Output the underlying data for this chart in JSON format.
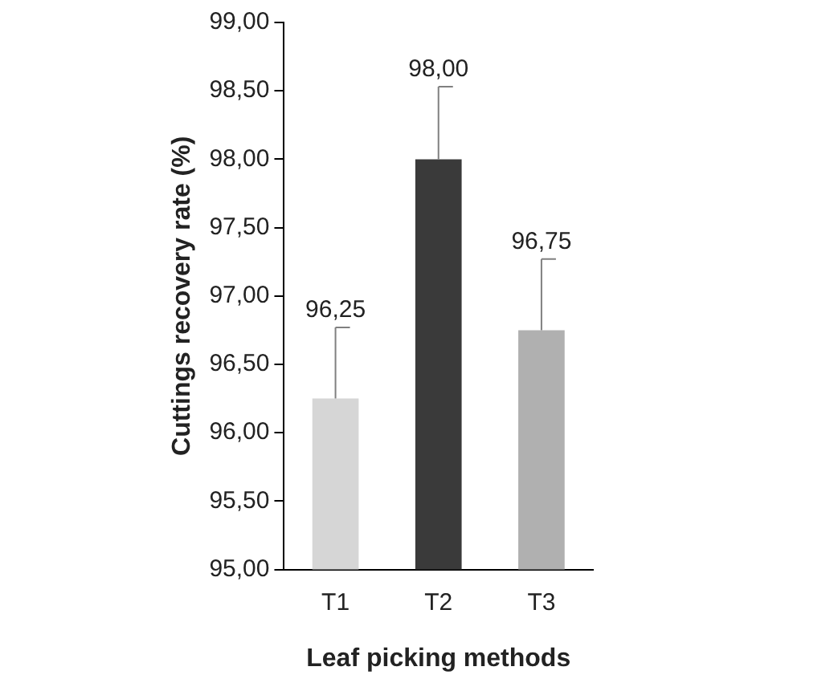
{
  "chart_data": {
    "type": "bar",
    "xlabel": "Leaf picking methods",
    "ylabel": "Cuttings recovery rate (%)",
    "categories": [
      "T1",
      "T2",
      "T3"
    ],
    "values": [
      96.25,
      98.0,
      96.75
    ],
    "colors": [
      "#d6d6d6",
      "#3a3a3a",
      "#b0b0b0"
    ],
    "errors": [
      [
        96.25,
        96.77
      ],
      [
        98.0,
        98.53
      ],
      [
        96.75,
        97.27
      ]
    ],
    "value_labels": [
      "96,25",
      "98,00",
      "96,75"
    ],
    "ylim": [
      95,
      99
    ],
    "yticks": [
      {
        "value": 95,
        "label": "95,00"
      },
      {
        "value": 95.5,
        "label": "95,50"
      },
      {
        "value": 96,
        "label": "96,00"
      },
      {
        "value": 96.5,
        "label": "96,50"
      },
      {
        "value": 97,
        "label": "97,00"
      },
      {
        "value": 97.5,
        "label": "97,50"
      },
      {
        "value": 98,
        "label": "98,00"
      },
      {
        "value": 98.5,
        "label": "98,50"
      },
      {
        "value": 99,
        "label": "99,00"
      }
    ],
    "grid": false,
    "legend": false
  }
}
